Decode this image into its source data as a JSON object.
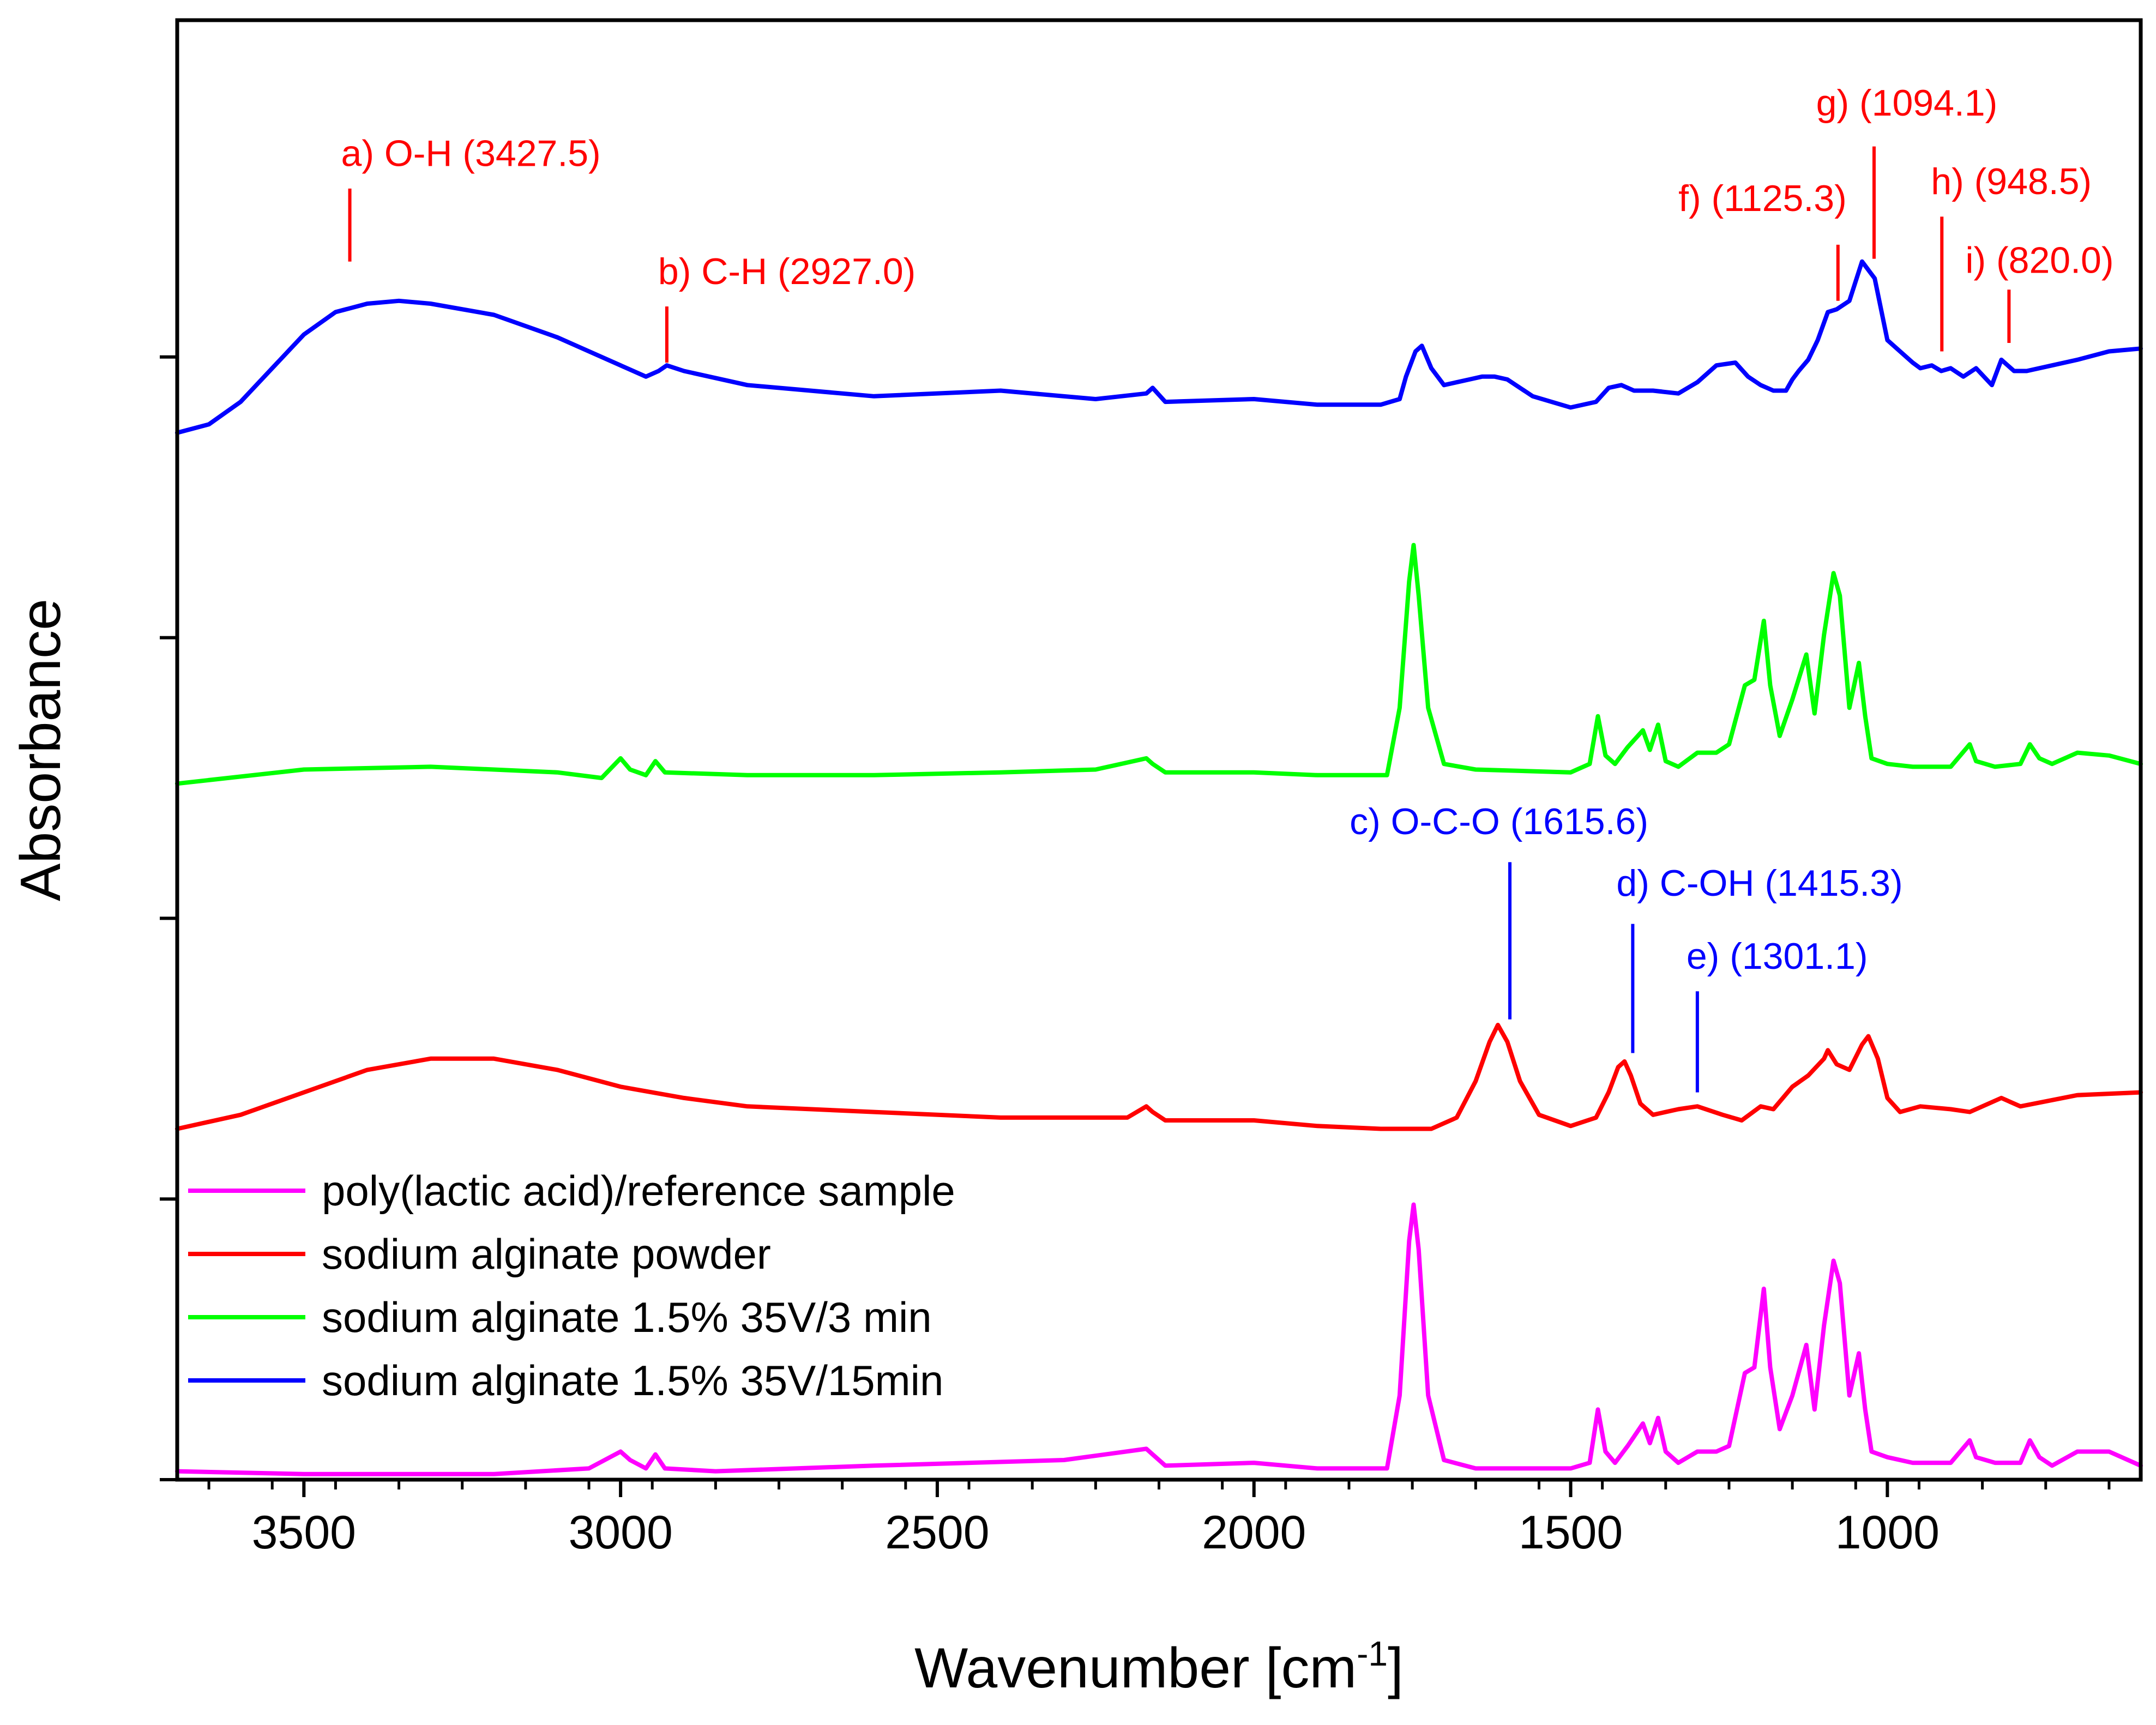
{
  "chart_data": {
    "type": "line",
    "xlabel": "Wavenumber [cm",
    "xlabel_sup": "-1",
    "xlabel_end": "]",
    "ylabel": "Absorbance",
    "xlim": [
      3700,
      600
    ],
    "x_reversed": true,
    "xticks": [
      3500,
      3000,
      2500,
      2000,
      1500,
      1000
    ],
    "xtick_labels": [
      "3500",
      "3000",
      "2500",
      "2000",
      "1500",
      "1000"
    ],
    "ylim": [
      0,
      5.2
    ],
    "yticks": [
      0,
      1,
      2,
      3,
      4
    ],
    "ytick_labels_shown": false,
    "grid": false,
    "legend_position": "bottom-left",
    "legend": [
      {
        "label": "poly(lactic acid)/reference sample",
        "color": "#ff00ff"
      },
      {
        "label": "sodium alginate powder",
        "color": "#ff0000"
      },
      {
        "label": "sodium alginate 1.5% 35V/3 min",
        "color": "#00ff00"
      },
      {
        "label": "sodium alginate 1.5% 35V/15min",
        "color": "#0000ff"
      }
    ],
    "series": [
      {
        "name": "poly(lactic acid)/reference sample",
        "color": "#ff00ff",
        "x": [
          3700,
          3500,
          3200,
          3050,
          3000,
          2985,
          2960,
          2945,
          2930,
          2850,
          2600,
          2300,
          2170,
          2160,
          2140,
          2000,
          1900,
          1790,
          1770,
          1755,
          1748,
          1740,
          1725,
          1700,
          1650,
          1500,
          1470,
          1457,
          1445,
          1430,
          1410,
          1386,
          1375,
          1362,
          1350,
          1330,
          1300,
          1270,
          1250,
          1225,
          1210,
          1195,
          1185,
          1170,
          1150,
          1128,
          1115,
          1100,
          1085,
          1075,
          1060,
          1045,
          1035,
          1025,
          1000,
          960,
          900,
          870,
          860,
          830,
          790,
          775,
          760,
          740,
          700,
          650,
          600
        ],
        "y": [
          0.03,
          0.02,
          0.02,
          0.04,
          0.1,
          0.07,
          0.04,
          0.09,
          0.04,
          0.03,
          0.05,
          0.07,
          0.11,
          0.09,
          0.05,
          0.06,
          0.04,
          0.04,
          0.3,
          0.85,
          0.98,
          0.82,
          0.3,
          0.07,
          0.04,
          0.04,
          0.06,
          0.25,
          0.1,
          0.06,
          0.12,
          0.2,
          0.13,
          0.22,
          0.1,
          0.06,
          0.1,
          0.1,
          0.12,
          0.38,
          0.4,
          0.68,
          0.4,
          0.18,
          0.3,
          0.48,
          0.25,
          0.55,
          0.78,
          0.7,
          0.3,
          0.45,
          0.25,
          0.1,
          0.08,
          0.06,
          0.06,
          0.14,
          0.08,
          0.06,
          0.06,
          0.14,
          0.08,
          0.05,
          0.1,
          0.1,
          0.05
        ]
      },
      {
        "name": "sodium alginate powder",
        "color": "#ff0000",
        "x": [
          3700,
          3600,
          3500,
          3400,
          3300,
          3200,
          3100,
          3000,
          2900,
          2800,
          2600,
          2400,
          2200,
          2170,
          2160,
          2140,
          2000,
          1900,
          1800,
          1720,
          1680,
          1650,
          1628,
          1615,
          1600,
          1580,
          1550,
          1500,
          1460,
          1440,
          1425,
          1415,
          1405,
          1390,
          1370,
          1330,
          1300,
          1260,
          1230,
          1200,
          1180,
          1150,
          1125,
          1100,
          1094,
          1080,
          1060,
          1040,
          1030,
          1015,
          1000,
          980,
          948,
          900,
          870,
          820,
          790,
          700,
          600
        ],
        "y": [
          1.25,
          1.3,
          1.38,
          1.46,
          1.5,
          1.5,
          1.46,
          1.4,
          1.36,
          1.33,
          1.31,
          1.29,
          1.29,
          1.33,
          1.31,
          1.28,
          1.28,
          1.26,
          1.25,
          1.25,
          1.29,
          1.42,
          1.56,
          1.62,
          1.56,
          1.42,
          1.3,
          1.26,
          1.29,
          1.38,
          1.47,
          1.49,
          1.44,
          1.34,
          1.3,
          1.32,
          1.33,
          1.3,
          1.28,
          1.33,
          1.32,
          1.4,
          1.44,
          1.5,
          1.53,
          1.48,
          1.46,
          1.55,
          1.58,
          1.5,
          1.36,
          1.31,
          1.33,
          1.32,
          1.31,
          1.36,
          1.33,
          1.37,
          1.38
        ]
      },
      {
        "name": "sodium alginate 1.5% 35V/3 min",
        "color": "#00ff00",
        "x": [
          3700,
          3500,
          3300,
          3100,
          3030,
          3000,
          2985,
          2960,
          2945,
          2930,
          2800,
          2600,
          2400,
          2250,
          2170,
          2160,
          2140,
          2000,
          1900,
          1790,
          1770,
          1755,
          1748,
          1740,
          1725,
          1700,
          1650,
          1500,
          1470,
          1457,
          1445,
          1430,
          1410,
          1386,
          1375,
          1362,
          1350,
          1330,
          1300,
          1270,
          1250,
          1225,
          1210,
          1195,
          1185,
          1170,
          1150,
          1128,
          1115,
          1100,
          1085,
          1075,
          1060,
          1045,
          1035,
          1025,
          1000,
          960,
          900,
          870,
          860,
          830,
          790,
          775,
          760,
          740,
          700,
          650,
          600
        ],
        "y": [
          2.48,
          2.53,
          2.54,
          2.52,
          2.5,
          2.57,
          2.53,
          2.51,
          2.56,
          2.52,
          2.51,
          2.51,
          2.52,
          2.53,
          2.57,
          2.55,
          2.52,
          2.52,
          2.51,
          2.51,
          2.75,
          3.2,
          3.33,
          3.15,
          2.75,
          2.55,
          2.53,
          2.52,
          2.55,
          2.72,
          2.58,
          2.55,
          2.61,
          2.67,
          2.6,
          2.69,
          2.56,
          2.54,
          2.59,
          2.59,
          2.62,
          2.83,
          2.85,
          3.06,
          2.83,
          2.65,
          2.78,
          2.94,
          2.73,
          3.01,
          3.23,
          3.15,
          2.75,
          2.91,
          2.72,
          2.57,
          2.55,
          2.54,
          2.54,
          2.62,
          2.56,
          2.54,
          2.55,
          2.62,
          2.57,
          2.55,
          2.59,
          2.58,
          2.55
        ]
      },
      {
        "name": "sodium alginate 1.5% 35V/15min",
        "color": "#0000ff",
        "x": [
          3700,
          3650,
          3600,
          3550,
          3500,
          3450,
          3400,
          3350,
          3300,
          3200,
          3100,
          3000,
          2960,
          2940,
          2927,
          2900,
          2800,
          2600,
          2400,
          2250,
          2170,
          2160,
          2140,
          2000,
          1900,
          1800,
          1770,
          1760,
          1745,
          1735,
          1720,
          1700,
          1660,
          1640,
          1620,
          1600,
          1560,
          1500,
          1460,
          1440,
          1420,
          1400,
          1370,
          1330,
          1300,
          1270,
          1240,
          1220,
          1200,
          1180,
          1160,
          1150,
          1140,
          1125,
          1110,
          1094,
          1080,
          1060,
          1040,
          1020,
          1000,
          960,
          948,
          930,
          915,
          900,
          880,
          860,
          835,
          820,
          800,
          780,
          740,
          700,
          650,
          600
        ],
        "y": [
          3.73,
          3.76,
          3.84,
          3.96,
          4.08,
          4.16,
          4.19,
          4.2,
          4.19,
          4.15,
          4.07,
          3.97,
          3.93,
          3.95,
          3.97,
          3.95,
          3.9,
          3.86,
          3.88,
          3.85,
          3.87,
          3.89,
          3.84,
          3.85,
          3.83,
          3.83,
          3.85,
          3.93,
          4.02,
          4.04,
          3.96,
          3.9,
          3.92,
          3.93,
          3.93,
          3.92,
          3.86,
          3.82,
          3.84,
          3.89,
          3.9,
          3.88,
          3.88,
          3.87,
          3.91,
          3.97,
          3.98,
          3.93,
          3.9,
          3.88,
          3.88,
          3.92,
          3.95,
          3.99,
          4.06,
          4.16,
          4.17,
          4.2,
          4.34,
          4.28,
          4.06,
          3.98,
          3.96,
          3.97,
          3.95,
          3.96,
          3.93,
          3.96,
          3.9,
          3.99,
          3.95,
          3.95,
          3.97,
          3.99,
          4.02,
          4.03
        ]
      }
    ],
    "annotations": [
      {
        "label": "a) O-H (3427.5)",
        "color": "#ff0000",
        "x": 3427.5,
        "y1": 4.34,
        "y2": 4.6,
        "text_y": 4.68,
        "anchor": "start",
        "dx": -16
      },
      {
        "label": "b) C-H (2927.0)",
        "color": "#ff0000",
        "x": 2927.0,
        "y1": 3.98,
        "y2": 4.18,
        "text_y": 4.26,
        "anchor": "start",
        "dx": -16
      },
      {
        "label": "f) (1125.3)",
        "color": "#ff0000",
        "x": 1078,
        "y1": 4.2,
        "y2": 4.4,
        "text_y": 4.52,
        "anchor": "end",
        "dx": 16
      },
      {
        "label": "g) (1094.1)",
        "color": "#ff0000",
        "x": 1021,
        "y1": 4.35,
        "y2": 4.75,
        "text_y": 4.86,
        "anchor": "middle",
        "dx": 60
      },
      {
        "label": "h) (948.5)",
        "color": "#ff0000",
        "x": 914,
        "y1": 4.02,
        "y2": 4.5,
        "text_y": 4.58,
        "anchor": "start",
        "dx": -20
      },
      {
        "label": "i) (820.0)",
        "color": "#ff0000",
        "x": 808,
        "y1": 4.05,
        "y2": 4.24,
        "text_y": 4.3,
        "anchor": "start",
        "dx": -80
      },
      {
        "label": "c) O-C-O (1615.6)",
        "color": "#0000ff",
        "x": 1596,
        "y1": 1.64,
        "y2": 2.2,
        "text_y": 2.3,
        "anchor": "middle",
        "dx": -20
      },
      {
        "label": "d) C-OH (1415.3)",
        "color": "#0000ff",
        "x": 1402,
        "y1": 1.52,
        "y2": 1.98,
        "text_y": 2.08,
        "anchor": "start",
        "dx": -30
      },
      {
        "label": "e) (1301.1)",
        "color": "#0000ff",
        "x": 1300,
        "y1": 1.38,
        "y2": 1.74,
        "text_y": 1.82,
        "anchor": "start",
        "dx": -20
      }
    ]
  }
}
